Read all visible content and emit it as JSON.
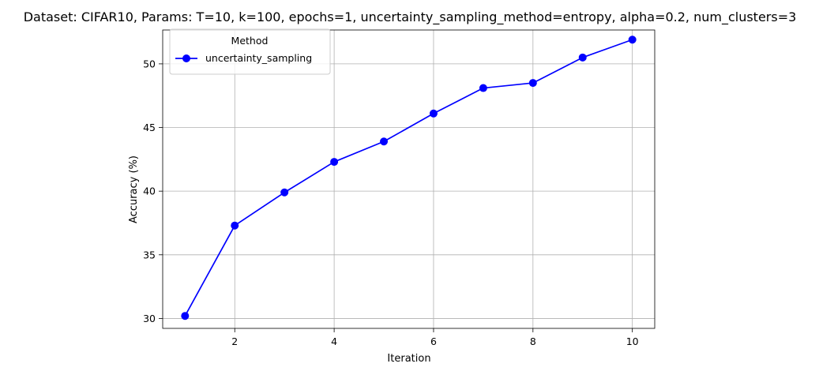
{
  "chart_data": {
    "type": "line",
    "title": "Dataset: CIFAR10, Params: T=10, k=100, epochs=1, uncertainty_sampling_method=entropy, alpha=0.2, num_clusters=3",
    "xlabel": "Iteration",
    "ylabel": "Accuracy (%)",
    "xlim": [
      0.55,
      10.45
    ],
    "ylim": [
      29.22,
      52.66
    ],
    "xticks": [
      2,
      4,
      6,
      8,
      10
    ],
    "yticks": [
      30,
      35,
      40,
      45,
      50
    ],
    "grid": true,
    "legend": {
      "title": "Method",
      "placement": "top-left"
    },
    "series": [
      {
        "name": "uncertainty_sampling",
        "color": "#0000ff",
        "marker": "circle",
        "x": [
          1,
          2,
          3,
          4,
          5,
          6,
          7,
          8,
          9,
          10
        ],
        "y": [
          30.2,
          37.3,
          39.9,
          42.3,
          43.9,
          46.1,
          48.1,
          48.5,
          50.5,
          51.9
        ]
      }
    ]
  }
}
